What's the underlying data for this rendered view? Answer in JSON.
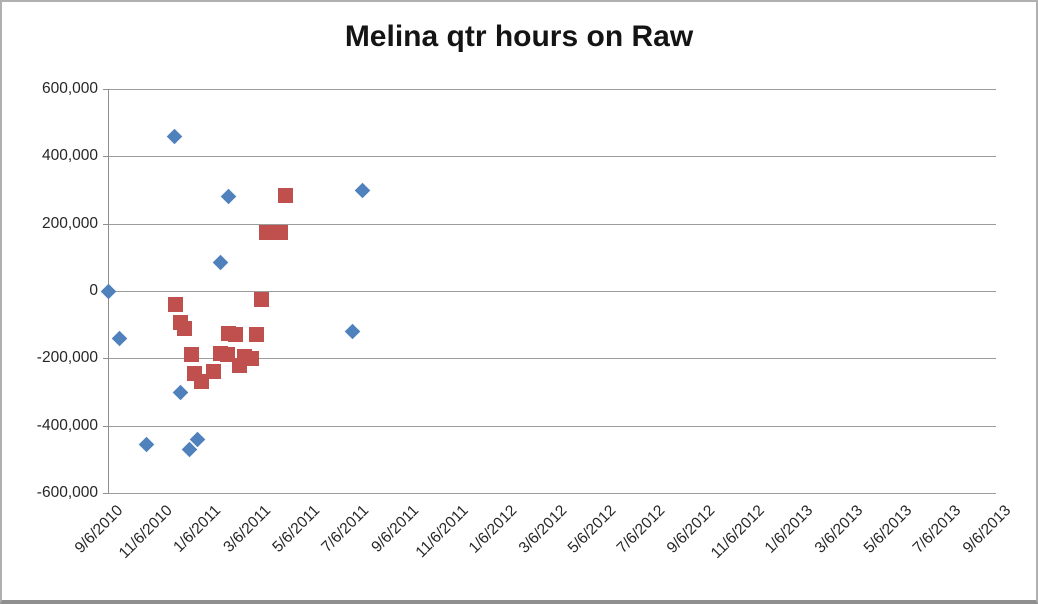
{
  "chart_data": {
    "type": "scatter",
    "title": "Melina qtr hours on Raw",
    "legend": "none",
    "grid": true,
    "x_axis": {
      "tick_interval_months": 2,
      "labels": [
        "9/6/2010",
        "11/6/2010",
        "1/6/2011",
        "3/6/2011",
        "5/6/2011",
        "7/6/2011",
        "9/6/2011",
        "11/6/2011",
        "1/6/2012",
        "3/6/2012",
        "5/6/2012",
        "7/6/2012",
        "9/6/2012",
        "11/6/2012",
        "1/6/2013",
        "3/6/2013",
        "5/6/2013",
        "7/6/2013",
        "9/6/2013"
      ]
    },
    "y_axis": {
      "min": -600000,
      "max": 600000,
      "tick_step": 200000,
      "tick_labels": [
        "600,000",
        "400,000",
        "200,000",
        "0",
        "-200,000",
        "-400,000",
        "-600,000"
      ]
    },
    "series": [
      {
        "id": "series-1",
        "marker": "diamond",
        "color": "#4F81BD",
        "points": [
          {
            "approx_date": "9/6/2010",
            "t": 0.0,
            "value": 0
          },
          {
            "approx_date": "9/20/2010",
            "t": 0.24,
            "value": -140000
          },
          {
            "approx_date": "10/24/2010",
            "t": 0.79,
            "value": -455000
          },
          {
            "approx_date": "11/26/2010",
            "t": 1.34,
            "value": 460000
          },
          {
            "approx_date": "12/3/2010",
            "t": 1.46,
            "value": -300000
          },
          {
            "approx_date": "12/16/2010",
            "t": 1.66,
            "value": -470000
          },
          {
            "approx_date": "12/25/2010",
            "t": 1.82,
            "value": -440000
          },
          {
            "approx_date": "1/23/2011",
            "t": 2.29,
            "value": 85000
          },
          {
            "approx_date": "2/2/2011",
            "t": 2.45,
            "value": 280000
          },
          {
            "approx_date": "7/3/2011",
            "t": 4.95,
            "value": -120000
          },
          {
            "approx_date": "7/15/2011",
            "t": 5.15,
            "value": 300000
          }
        ]
      },
      {
        "id": "series-2",
        "marker": "square",
        "color": "#C0504D",
        "points": [
          {
            "approx_date": "11/28/2010",
            "t": 1.36,
            "value": -40000
          },
          {
            "approx_date": "12/3/2010",
            "t": 1.46,
            "value": -95000
          },
          {
            "approx_date": "12/9/2010",
            "t": 1.56,
            "value": -110000
          },
          {
            "approx_date": "12/18/2010",
            "t": 1.7,
            "value": -190000
          },
          {
            "approx_date": "12/22/2010",
            "t": 1.76,
            "value": -245000
          },
          {
            "approx_date": "12/29/2010",
            "t": 1.89,
            "value": -270000
          },
          {
            "approx_date": "1/13/2011",
            "t": 2.13,
            "value": -240000
          },
          {
            "approx_date": "1/23/2011",
            "t": 2.29,
            "value": -185000
          },
          {
            "approx_date": "2/1/2011",
            "t": 2.43,
            "value": -190000
          },
          {
            "approx_date": "2/2/2011",
            "t": 2.45,
            "value": -125000
          },
          {
            "approx_date": "2/10/2011",
            "t": 2.59,
            "value": -130000
          },
          {
            "approx_date": "2/15/2011",
            "t": 2.66,
            "value": -220000
          },
          {
            "approx_date": "2/21/2011",
            "t": 2.76,
            "value": -195000
          },
          {
            "approx_date": "2/28/2011",
            "t": 2.9,
            "value": -200000
          },
          {
            "approx_date": "3/6/2011",
            "t": 3.0,
            "value": -130000
          },
          {
            "approx_date": "3/13/2011",
            "t": 3.12,
            "value": -25000
          },
          {
            "approx_date": "3/19/2011",
            "t": 3.22,
            "value": 175000
          },
          {
            "approx_date": "4/4/2011",
            "t": 3.49,
            "value": 175000
          },
          {
            "approx_date": "4/10/2011",
            "t": 3.59,
            "value": 285000
          }
        ]
      }
    ]
  }
}
